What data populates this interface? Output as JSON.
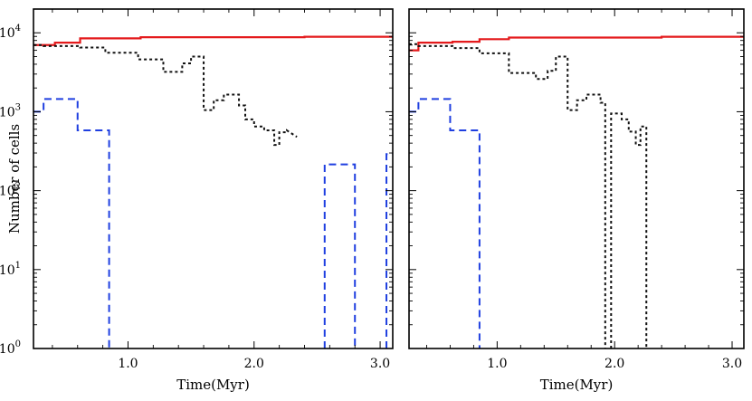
{
  "figure": {
    "kind": "two-panel histogram plot"
  },
  "colors": {
    "red": "#e41a1c",
    "black": "#111111",
    "blue": "#1f3fe0"
  },
  "chart_data": [
    {
      "type": "line",
      "panel": "left",
      "xlabel": "Time(Myr)",
      "ylabel": "Number of cells",
      "xlim": [
        0.25,
        3.1
      ],
      "ylog": true,
      "ylim": [
        1,
        20000
      ],
      "xticks": [
        {
          "v": 1.0,
          "label": "1.0"
        },
        {
          "v": 2.0,
          "label": "2.0"
        },
        {
          "v": 3.0,
          "label": "3.0"
        }
      ],
      "yticks": [
        {
          "e": 0,
          "base": "10",
          "exp": "0"
        },
        {
          "e": 1,
          "base": "10",
          "exp": "1"
        },
        {
          "e": 2,
          "base": "10",
          "exp": "2"
        },
        {
          "e": 3,
          "base": "10",
          "exp": "3"
        },
        {
          "e": 4,
          "base": "10",
          "exp": "4"
        }
      ],
      "series": [
        {
          "name": "red",
          "color": "red",
          "dash": "",
          "points": [
            [
              0.25,
              7000
            ],
            [
              0.42,
              7000
            ],
            [
              0.42,
              7500
            ],
            [
              0.62,
              7500
            ],
            [
              0.62,
              8500
            ],
            [
              1.1,
              8500
            ],
            [
              1.1,
              8800
            ],
            [
              1.6,
              8800
            ],
            [
              1.6,
              8800
            ],
            [
              2.4,
              8800
            ],
            [
              2.4,
              8900
            ],
            [
              3.1,
              8900
            ]
          ]
        },
        {
          "name": "black",
          "color": "black",
          "dash": "3,3",
          "points": [
            [
              0.25,
              7000
            ],
            [
              0.33,
              7000
            ],
            [
              0.33,
              6800
            ],
            [
              0.62,
              6800
            ],
            [
              0.62,
              6500
            ],
            [
              0.82,
              6500
            ],
            [
              0.82,
              5600
            ],
            [
              1.08,
              5600
            ],
            [
              1.08,
              4600
            ],
            [
              1.28,
              4600
            ],
            [
              1.28,
              3200
            ],
            [
              1.43,
              3200
            ],
            [
              1.43,
              4100
            ],
            [
              1.5,
              4100
            ],
            [
              1.5,
              5000
            ],
            [
              1.6,
              5000
            ],
            [
              1.6,
              1050
            ],
            [
              1.68,
              1050
            ],
            [
              1.68,
              1400
            ],
            [
              1.76,
              1400
            ],
            [
              1.76,
              1650
            ],
            [
              1.88,
              1650
            ],
            [
              1.88,
              1200
            ],
            [
              1.93,
              1200
            ],
            [
              1.93,
              800
            ],
            [
              2.0,
              800
            ],
            [
              2.0,
              650
            ],
            [
              2.08,
              650
            ],
            [
              2.08,
              580
            ],
            [
              2.16,
              580
            ],
            [
              2.16,
              380
            ],
            [
              2.2,
              380
            ],
            [
              2.2,
              550
            ],
            [
              2.26,
              550
            ],
            [
              2.26,
              580
            ],
            [
              2.34,
              480
            ]
          ]
        },
        {
          "name": "blue",
          "color": "blue",
          "dash": "8,5",
          "points": [
            [
              0.25,
              1000
            ],
            [
              0.33,
              1000
            ],
            [
              0.33,
              1450
            ],
            [
              0.6,
              1450
            ],
            [
              0.6,
              580
            ],
            [
              0.85,
              580
            ],
            [
              0.85,
              1
            ]
          ]
        },
        {
          "name": "blue",
          "color": "blue",
          "dash": "8,5",
          "points": [
            [
              2.56,
              1
            ],
            [
              2.56,
              215
            ],
            [
              2.8,
              215
            ],
            [
              2.8,
              1
            ]
          ]
        },
        {
          "name": "blue",
          "color": "blue",
          "dash": "8,5",
          "points": [
            [
              3.05,
              1
            ],
            [
              3.05,
              290
            ],
            [
              3.1,
              290
            ]
          ]
        }
      ]
    },
    {
      "type": "line",
      "panel": "right",
      "xlabel": "Time(Myr)",
      "ylabel": "",
      "xlim": [
        0.25,
        3.1
      ],
      "ylog": true,
      "ylim": [
        1,
        20000
      ],
      "xticks": [
        {
          "v": 1.0,
          "label": "1.0"
        },
        {
          "v": 2.0,
          "label": "2.0"
        },
        {
          "v": 3.0,
          "label": "3.0"
        }
      ],
      "yticks": [],
      "series": [
        {
          "name": "red",
          "color": "red",
          "dash": "",
          "points": [
            [
              0.25,
              6000
            ],
            [
              0.33,
              6000
            ],
            [
              0.33,
              7500
            ],
            [
              0.62,
              7500
            ],
            [
              0.62,
              7700
            ],
            [
              0.85,
              7700
            ],
            [
              0.85,
              8300
            ],
            [
              1.1,
              8300
            ],
            [
              1.1,
              8700
            ],
            [
              1.6,
              8700
            ],
            [
              1.6,
              8700
            ],
            [
              2.4,
              8700
            ],
            [
              2.4,
              8900
            ],
            [
              3.1,
              8900
            ]
          ]
        },
        {
          "name": "black",
          "color": "black",
          "dash": "3,3",
          "points": [
            [
              0.25,
              7200
            ],
            [
              0.33,
              7200
            ],
            [
              0.33,
              6800
            ],
            [
              0.62,
              6800
            ],
            [
              0.62,
              6400
            ],
            [
              0.85,
              6400
            ],
            [
              0.85,
              5500
            ],
            [
              1.1,
              5500
            ],
            [
              1.1,
              3100
            ],
            [
              1.33,
              3100
            ],
            [
              1.33,
              2600
            ],
            [
              1.43,
              2600
            ],
            [
              1.43,
              3300
            ],
            [
              1.5,
              3300
            ],
            [
              1.5,
              5000
            ],
            [
              1.6,
              5000
            ],
            [
              1.6,
              1050
            ],
            [
              1.68,
              1050
            ],
            [
              1.68,
              1400
            ],
            [
              1.76,
              1400
            ],
            [
              1.76,
              1650
            ],
            [
              1.88,
              1650
            ],
            [
              1.88,
              1300
            ],
            [
              1.92,
              1300
            ],
            [
              1.92,
              1
            ]
          ]
        },
        {
          "name": "black",
          "color": "black",
          "dash": "3,3",
          "points": [
            [
              1.97,
              1
            ],
            [
              1.97,
              950
            ],
            [
              2.06,
              950
            ],
            [
              2.06,
              800
            ],
            [
              2.12,
              800
            ],
            [
              2.12,
              560
            ],
            [
              2.18,
              560
            ],
            [
              2.18,
              380
            ],
            [
              2.22,
              380
            ],
            [
              2.22,
              650
            ],
            [
              2.27,
              650
            ],
            [
              2.27,
              1
            ]
          ]
        },
        {
          "name": "blue",
          "color": "blue",
          "dash": "8,5",
          "points": [
            [
              0.25,
              1000
            ],
            [
              0.33,
              1000
            ],
            [
              0.33,
              1450
            ],
            [
              0.6,
              1450
            ],
            [
              0.6,
              580
            ],
            [
              0.85,
              580
            ],
            [
              0.85,
              1
            ]
          ]
        }
      ]
    }
  ]
}
